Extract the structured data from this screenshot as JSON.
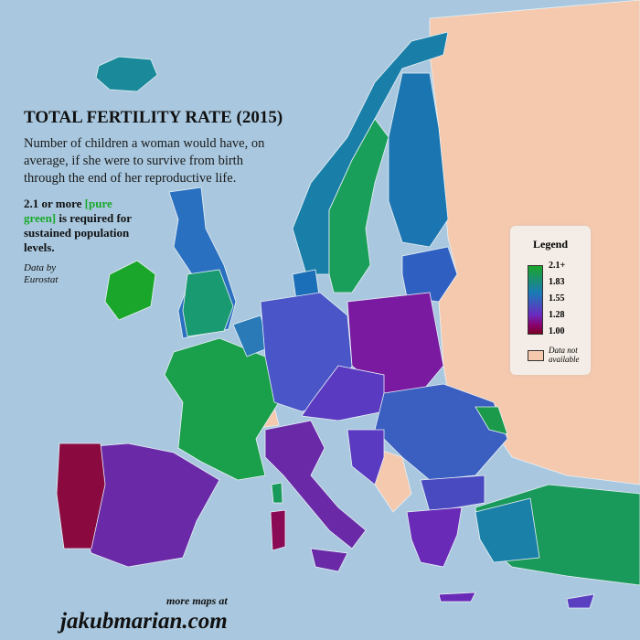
{
  "title": "TOTAL FERTILITY RATE (2015)",
  "subtitle": "Number of children a woman would have, on average, if she were to survive from birth through the end of her reproductive life.",
  "note": {
    "prefix": "2.1 or more ",
    "highlight": "[pure green]",
    "suffix": " is required for sustained population levels."
  },
  "source": "Data by Eurostat",
  "legend": {
    "title": "Legend",
    "ticks": [
      "2.1+",
      "1.83",
      "1.55",
      "1.28",
      "1.00"
    ],
    "na_label": "Data not available",
    "colors": {
      "high": "#1aa62a",
      "mid": "#1a7ab8",
      "low_mid": "#6a2bc0",
      "low": "#7a0022",
      "na": "#f5c9ae"
    }
  },
  "footer": {
    "more": "more maps at",
    "site": "jakubmarian.com"
  },
  "colors": {
    "sea": "#a9c8df",
    "na_land": "#f5c9ae"
  }
}
